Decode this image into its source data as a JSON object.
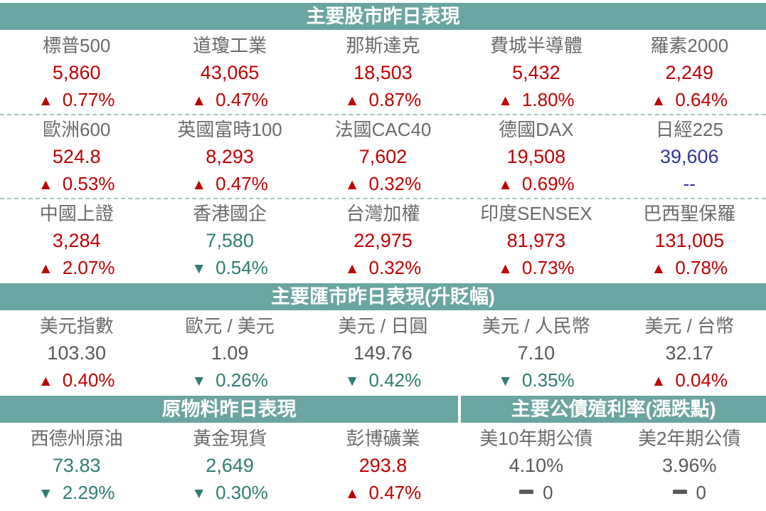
{
  "colors": {
    "up": "#C00000",
    "down": "#2E7D73",
    "neutral": "#595959",
    "blue": "#3333A0",
    "header_bg": "#6AA5A1",
    "header_text": "#FFFFFF",
    "name": "#6A6A6A",
    "dashed_line": "#9FC7C4"
  },
  "icons": {
    "up_arrow": "▲",
    "down_arrow": "▼",
    "no_change": "--"
  },
  "chart_data": {
    "type": "table",
    "sections": [
      {
        "id": "stocks",
        "title": "主要股市昨日表現",
        "rows": [
          [
            {
              "name": "標普500",
              "value": "5,860",
              "value_color": "up",
              "direction": "up",
              "change": "0.77%"
            },
            {
              "name": "道瓊工業",
              "value": "43,065",
              "value_color": "up",
              "direction": "up",
              "change": "0.47%"
            },
            {
              "name": "那斯達克",
              "value": "18,503",
              "value_color": "up",
              "direction": "up",
              "change": "0.87%"
            },
            {
              "name": "費城半導體",
              "value": "5,432",
              "value_color": "up",
              "direction": "up",
              "change": "1.80%"
            },
            {
              "name": "羅素2000",
              "value": "2,249",
              "value_color": "up",
              "direction": "up",
              "change": "0.64%"
            }
          ],
          [
            {
              "name": "歐洲600",
              "value": "524.8",
              "value_color": "up",
              "direction": "up",
              "change": "0.53%"
            },
            {
              "name": "英國富時100",
              "value": "8,293",
              "value_color": "up",
              "direction": "up",
              "change": "0.47%"
            },
            {
              "name": "法國CAC40",
              "value": "7,602",
              "value_color": "up",
              "direction": "up",
              "change": "0.32%"
            },
            {
              "name": "德國DAX",
              "value": "19,508",
              "value_color": "up",
              "direction": "up",
              "change": "0.69%"
            },
            {
              "name": "日經225",
              "value": "39,606",
              "value_color": "blue",
              "direction": "none",
              "change": "--",
              "change_color": "blue"
            }
          ],
          [
            {
              "name": "中國上證",
              "value": "3,284",
              "value_color": "up",
              "direction": "up",
              "change": "2.07%"
            },
            {
              "name": "香港國企",
              "value": "7,580",
              "value_color": "down",
              "direction": "down",
              "change": "0.54%"
            },
            {
              "name": "台灣加權",
              "value": "22,975",
              "value_color": "up",
              "direction": "up",
              "change": "0.32%"
            },
            {
              "name": "印度SENSEX",
              "value": "81,973",
              "value_color": "up",
              "direction": "up",
              "change": "0.73%"
            },
            {
              "name": "巴西聖保羅",
              "value": "131,005",
              "value_color": "up",
              "direction": "up",
              "change": "0.78%"
            }
          ]
        ]
      },
      {
        "id": "fx",
        "title": "主要匯市昨日表現(升貶幅)",
        "rows": [
          [
            {
              "name": "美元指數",
              "value": "103.30",
              "value_color": "neutral",
              "direction": "up",
              "change": "0.40%"
            },
            {
              "name": "歐元 / 美元",
              "value": "1.09",
              "value_color": "neutral",
              "direction": "down",
              "change": "0.26%"
            },
            {
              "name": "美元 / 日圓",
              "value": "149.76",
              "value_color": "neutral",
              "direction": "down",
              "change": "0.42%"
            },
            {
              "name": "美元 / 人民幣",
              "value": "7.10",
              "value_color": "neutral",
              "direction": "down",
              "change": "0.35%"
            },
            {
              "name": "美元 / 台幣",
              "value": "32.17",
              "value_color": "neutral",
              "direction": "up",
              "change": "0.04%"
            }
          ]
        ]
      },
      {
        "id": "commodities_bonds",
        "titles": [
          "原物料昨日表現",
          "主要公債殖利率(漲跌點)"
        ],
        "rows": [
          [
            {
              "name": "西德州原油",
              "value": "73.83",
              "value_color": "down",
              "direction": "down",
              "change": "2.29%"
            },
            {
              "name": "黃金現貨",
              "value": "2,649",
              "value_color": "down",
              "direction": "down",
              "change": "0.30%"
            },
            {
              "name": "彭博礦業",
              "value": "293.8",
              "value_color": "up",
              "direction": "up",
              "change": "0.47%"
            },
            {
              "name": "美10年期公債",
              "value": "4.10%",
              "value_color": "neutral",
              "direction": "flat",
              "change": "0"
            },
            {
              "name": "美2年期公債",
              "value": "3.96%",
              "value_color": "neutral",
              "direction": "flat",
              "change": "0"
            }
          ]
        ]
      }
    ]
  }
}
